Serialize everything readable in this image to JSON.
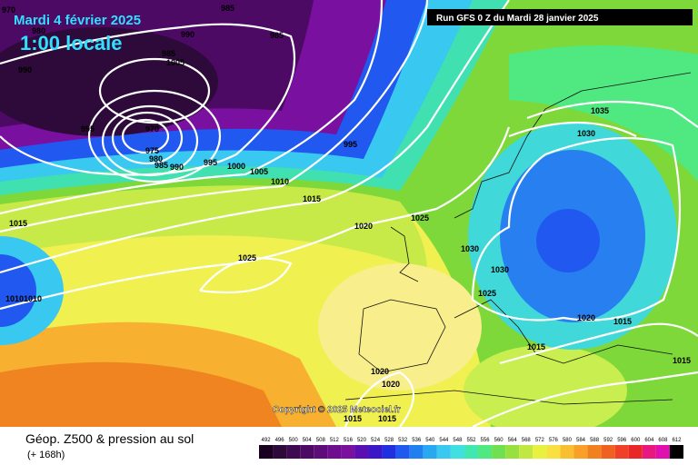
{
  "header": {
    "date": "Mardi 4 février 2025",
    "time": "1:00 locale",
    "run": "Run GFS 0 Z du Mardi 28 janvier 2025"
  },
  "copyright": "Copyright © 2025 Meteociel.fr",
  "legend": {
    "title": "Géop. Z500 & pression au sol",
    "subtitle": "(+ 168h)",
    "values": [
      492,
      496,
      500,
      504,
      508,
      512,
      516,
      520,
      524,
      528,
      532,
      536,
      540,
      544,
      548,
      552,
      556,
      560,
      564,
      568,
      572,
      576,
      580,
      584,
      588,
      592,
      596,
      600,
      604,
      608,
      612
    ],
    "colors": [
      "#1a0020",
      "#2e0a3a",
      "#3e0a50",
      "#4c0a64",
      "#5e0c7a",
      "#6e0e8e",
      "#7a10a0",
      "#5a10b0",
      "#3a18c8",
      "#2030e0",
      "#2058f0",
      "#2080f0",
      "#28a8f0",
      "#38c8f0",
      "#40e0e0",
      "#40e8b0",
      "#50e880",
      "#70e050",
      "#98e040",
      "#c0e840",
      "#e8f040",
      "#f8e040",
      "#f8c030",
      "#f8a028",
      "#f08020",
      "#f06020",
      "#f04028",
      "#e82828",
      "#e81880",
      "#e010b0",
      "#000000"
    ]
  },
  "isobars": [
    970,
    985,
    980,
    990,
    985,
    990,
    1005,
    985,
    995,
    970,
    975,
    980,
    985,
    990,
    995,
    1000,
    1005,
    1010,
    995,
    1015,
    1020,
    1025,
    1025,
    1030,
    1030,
    1025,
    1015,
    1010,
    1010,
    1035,
    1030,
    1020,
    1015,
    1015,
    1015,
    1020,
    1020,
    1015,
    1015
  ]
}
